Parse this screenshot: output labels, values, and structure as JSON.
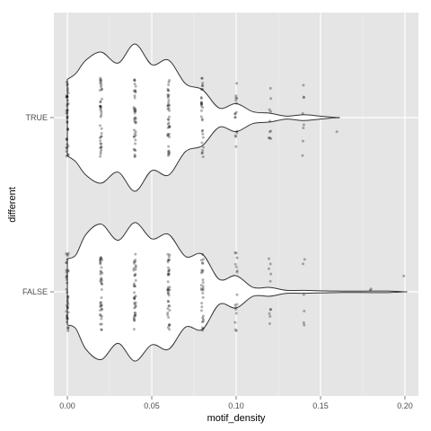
{
  "chart_data": {
    "type": "violin",
    "orientation": "horizontal",
    "xlabel": "motif_density",
    "ylabel": "different",
    "xlim": [
      -0.008,
      0.208
    ],
    "x_ticks": [
      0.0,
      0.05,
      0.1,
      0.15,
      0.2
    ],
    "x_tick_labels": [
      "0.00",
      "0.05",
      "0.10",
      "0.15",
      "0.20"
    ],
    "grid": true,
    "background": "#e5e5e5",
    "violin_fill": "#ffffff",
    "violin_outline": "#333333",
    "point_color": "#000000",
    "categories": [
      "TRUE",
      "FALSE"
    ],
    "groups": [
      {
        "category": "TRUE",
        "x_max": 0.16,
        "density": [
          [
            0.0,
            0.52
          ],
          [
            0.005,
            0.6
          ],
          [
            0.011,
            0.78
          ],
          [
            0.02,
            0.89
          ],
          [
            0.03,
            0.74
          ],
          [
            0.04,
            1.0
          ],
          [
            0.05,
            0.72
          ],
          [
            0.06,
            0.78
          ],
          [
            0.07,
            0.46
          ],
          [
            0.08,
            0.38
          ],
          [
            0.09,
            0.13
          ],
          [
            0.1,
            0.19
          ],
          [
            0.11,
            0.08
          ],
          [
            0.12,
            0.06
          ],
          [
            0.13,
            0.02
          ],
          [
            0.14,
            0.04
          ],
          [
            0.15,
            0.02
          ],
          [
            0.16,
            0.0
          ]
        ],
        "points": [
          {
            "x": 0.0,
            "n": 40,
            "spread": 0.45
          },
          {
            "x": 0.02,
            "n": 40,
            "spread": 0.45
          },
          {
            "x": 0.04,
            "n": 40,
            "spread": 0.45
          },
          {
            "x": 0.06,
            "n": 40,
            "spread": 0.45
          },
          {
            "x": 0.08,
            "n": 30,
            "spread": 0.45
          },
          {
            "x": 0.1,
            "n": 16,
            "spread": 0.45
          },
          {
            "x": 0.12,
            "n": 10,
            "spread": 0.4
          },
          {
            "x": 0.14,
            "n": 8,
            "spread": 0.45
          },
          {
            "x": 0.16,
            "n": 1,
            "spread": 0.16
          }
        ]
      },
      {
        "category": "FALSE",
        "x_max": 0.2,
        "density": [
          [
            0.0,
            0.45
          ],
          [
            0.005,
            0.5
          ],
          [
            0.011,
            0.78
          ],
          [
            0.02,
            0.92
          ],
          [
            0.03,
            0.7
          ],
          [
            0.04,
            0.94
          ],
          [
            0.05,
            0.72
          ],
          [
            0.06,
            0.78
          ],
          [
            0.07,
            0.48
          ],
          [
            0.08,
            0.51
          ],
          [
            0.09,
            0.17
          ],
          [
            0.1,
            0.22
          ],
          [
            0.11,
            0.06
          ],
          [
            0.12,
            0.06
          ],
          [
            0.13,
            0.02
          ],
          [
            0.14,
            0.02
          ],
          [
            0.16,
            0.01
          ],
          [
            0.18,
            0.01
          ],
          [
            0.19,
            0.01
          ],
          [
            0.2,
            0.0
          ]
        ],
        "points": [
          {
            "x": 0.0,
            "n": 40,
            "spread": 0.45
          },
          {
            "x": 0.02,
            "n": 40,
            "spread": 0.45
          },
          {
            "x": 0.04,
            "n": 40,
            "spread": 0.45
          },
          {
            "x": 0.06,
            "n": 40,
            "spread": 0.45
          },
          {
            "x": 0.08,
            "n": 30,
            "spread": 0.45
          },
          {
            "x": 0.1,
            "n": 16,
            "spread": 0.45
          },
          {
            "x": 0.12,
            "n": 10,
            "spread": 0.4
          },
          {
            "x": 0.14,
            "n": 6,
            "spread": 0.45
          },
          {
            "x": 0.18,
            "n": 2,
            "spread": 0.12
          },
          {
            "x": 0.2,
            "n": 1,
            "spread": 0.18
          }
        ]
      }
    ]
  }
}
